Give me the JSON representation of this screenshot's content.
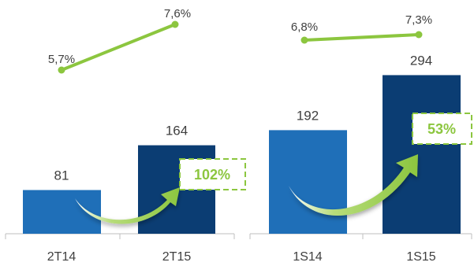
{
  "chart_data": [
    {
      "type": "bar",
      "categories": [
        "2T14",
        "2T15"
      ],
      "values": [
        81,
        164
      ],
      "value_labels": [
        "81",
        "164"
      ],
      "line_values": [
        5.7,
        7.6
      ],
      "line_labels": [
        "5,7%",
        "7,6%"
      ],
      "growth_label": "102%",
      "bar_colors": [
        "#1f6fb8",
        "#0b3d73"
      ]
    },
    {
      "type": "bar",
      "categories": [
        "1S14",
        "1S15"
      ],
      "values": [
        192,
        294
      ],
      "value_labels": [
        "192",
        "294"
      ],
      "line_values": [
        6.8,
        7.3
      ],
      "line_labels": [
        "6,8%",
        "7,3%"
      ],
      "growth_label": "53%",
      "bar_colors": [
        "#1f6fb8",
        "#0b3d73"
      ]
    }
  ],
  "colors": {
    "line": "#8cc63f",
    "growth_text": "#8cc63f",
    "axis": "#bfbfbf"
  }
}
